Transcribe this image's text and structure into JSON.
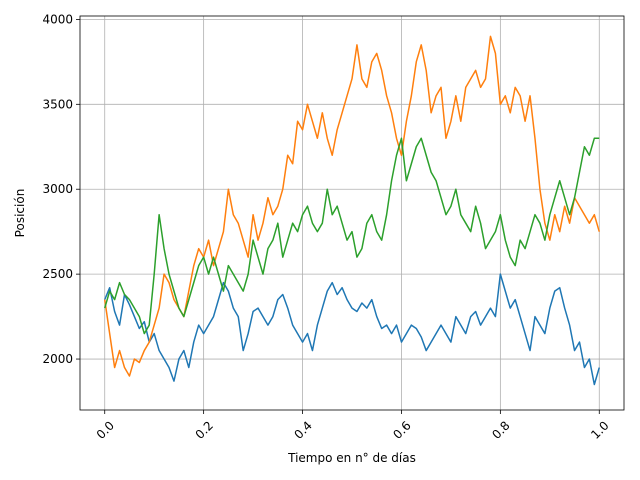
{
  "chart_data": {
    "type": "line",
    "title": "",
    "xlabel": "Tiempo en n° de días",
    "ylabel": "Posición",
    "xlim": [
      -0.05,
      1.05
    ],
    "ylim": [
      1700,
      4020
    ],
    "x_ticks": [
      0.0,
      0.2,
      0.4,
      0.6,
      0.8,
      1.0
    ],
    "x_tick_labels": [
      "0.0",
      "0.2",
      "0.4",
      "0.6",
      "0.8",
      "1.0"
    ],
    "y_ticks": [
      2000,
      2500,
      3000,
      3500,
      4000
    ],
    "y_tick_labels": [
      "2000",
      "2500",
      "3000",
      "3500",
      "4000"
    ],
    "grid": true,
    "legend": "none",
    "series": [
      {
        "color": "#1f77b4",
        "x": [
          0.0,
          0.01,
          0.02,
          0.03,
          0.04,
          0.05,
          0.06,
          0.07,
          0.08,
          0.09,
          0.1,
          0.11,
          0.12,
          0.13,
          0.14,
          0.15,
          0.16,
          0.17,
          0.18,
          0.19,
          0.2,
          0.21,
          0.22,
          0.23,
          0.24,
          0.25,
          0.26,
          0.27,
          0.28,
          0.29,
          0.3,
          0.31,
          0.32,
          0.33,
          0.34,
          0.35,
          0.36,
          0.37,
          0.38,
          0.39,
          0.4,
          0.41,
          0.42,
          0.43,
          0.44,
          0.45,
          0.46,
          0.47,
          0.48,
          0.49,
          0.5,
          0.51,
          0.52,
          0.53,
          0.54,
          0.55,
          0.56,
          0.57,
          0.58,
          0.59,
          0.6,
          0.61,
          0.62,
          0.63,
          0.64,
          0.65,
          0.66,
          0.67,
          0.68,
          0.69,
          0.7,
          0.71,
          0.72,
          0.73,
          0.74,
          0.75,
          0.76,
          0.77,
          0.78,
          0.79,
          0.8,
          0.81,
          0.82,
          0.83,
          0.84,
          0.85,
          0.86,
          0.87,
          0.88,
          0.89,
          0.9,
          0.91,
          0.92,
          0.93,
          0.94,
          0.95,
          0.96,
          0.97,
          0.98,
          0.99,
          1.0
        ],
        "y": [
          2350,
          2420,
          2280,
          2200,
          2380,
          2320,
          2250,
          2180,
          2220,
          2100,
          2150,
          2050,
          2000,
          1950,
          1870,
          2000,
          2050,
          1950,
          2100,
          2200,
          2150,
          2200,
          2250,
          2350,
          2450,
          2400,
          2300,
          2250,
          2050,
          2150,
          2280,
          2300,
          2250,
          2200,
          2250,
          2350,
          2380,
          2300,
          2200,
          2150,
          2100,
          2150,
          2050,
          2200,
          2300,
          2400,
          2450,
          2380,
          2420,
          2350,
          2300,
          2280,
          2330,
          2300,
          2350,
          2250,
          2180,
          2200,
          2150,
          2200,
          2100,
          2150,
          2200,
          2180,
          2130,
          2050,
          2100,
          2150,
          2200,
          2150,
          2100,
          2250,
          2200,
          2150,
          2250,
          2280,
          2200,
          2250,
          2300,
          2250,
          2500,
          2400,
          2300,
          2350,
          2250,
          2150,
          2050,
          2250,
          2200,
          2150,
          2300,
          2400,
          2420,
          2300,
          2200,
          2050,
          2100,
          1950,
          2000,
          1850,
          1950
        ]
      },
      {
        "color": "#ff7f0e",
        "x": [
          0.0,
          0.01,
          0.02,
          0.03,
          0.04,
          0.05,
          0.06,
          0.07,
          0.08,
          0.09,
          0.1,
          0.11,
          0.12,
          0.13,
          0.14,
          0.15,
          0.16,
          0.17,
          0.18,
          0.19,
          0.2,
          0.21,
          0.22,
          0.23,
          0.24,
          0.25,
          0.26,
          0.27,
          0.28,
          0.29,
          0.3,
          0.31,
          0.32,
          0.33,
          0.34,
          0.35,
          0.36,
          0.37,
          0.38,
          0.39,
          0.4,
          0.41,
          0.42,
          0.43,
          0.44,
          0.45,
          0.46,
          0.47,
          0.48,
          0.49,
          0.5,
          0.51,
          0.52,
          0.53,
          0.54,
          0.55,
          0.56,
          0.57,
          0.58,
          0.59,
          0.6,
          0.61,
          0.62,
          0.63,
          0.64,
          0.65,
          0.66,
          0.67,
          0.68,
          0.69,
          0.7,
          0.71,
          0.72,
          0.73,
          0.74,
          0.75,
          0.76,
          0.77,
          0.78,
          0.79,
          0.8,
          0.81,
          0.82,
          0.83,
          0.84,
          0.85,
          0.86,
          0.87,
          0.88,
          0.89,
          0.9,
          0.91,
          0.92,
          0.93,
          0.94,
          0.95,
          0.96,
          0.97,
          0.98,
          0.99,
          1.0
        ],
        "y": [
          2350,
          2150,
          1950,
          2050,
          1950,
          1900,
          2000,
          1980,
          2050,
          2100,
          2200,
          2300,
          2500,
          2450,
          2350,
          2300,
          2250,
          2400,
          2550,
          2650,
          2600,
          2700,
          2550,
          2650,
          2750,
          3000,
          2850,
          2800,
          2700,
          2600,
          2850,
          2700,
          2800,
          2950,
          2850,
          2900,
          3000,
          3200,
          3150,
          3400,
          3350,
          3500,
          3400,
          3300,
          3450,
          3300,
          3200,
          3350,
          3450,
          3550,
          3650,
          3850,
          3650,
          3600,
          3750,
          3800,
          3700,
          3550,
          3450,
          3300,
          3200,
          3400,
          3550,
          3750,
          3850,
          3700,
          3450,
          3550,
          3600,
          3300,
          3400,
          3550,
          3400,
          3600,
          3650,
          3700,
          3600,
          3650,
          3900,
          3800,
          3500,
          3550,
          3450,
          3600,
          3550,
          3400,
          3550,
          3300,
          3000,
          2800,
          2700,
          2850,
          2750,
          2900,
          2800,
          2950,
          2900,
          2850,
          2800,
          2850,
          2750
        ]
      },
      {
        "color": "#2ca02c",
        "x": [
          0.0,
          0.01,
          0.02,
          0.03,
          0.04,
          0.05,
          0.06,
          0.07,
          0.08,
          0.09,
          0.1,
          0.11,
          0.12,
          0.13,
          0.14,
          0.15,
          0.16,
          0.17,
          0.18,
          0.19,
          0.2,
          0.21,
          0.22,
          0.23,
          0.24,
          0.25,
          0.26,
          0.27,
          0.28,
          0.29,
          0.3,
          0.31,
          0.32,
          0.33,
          0.34,
          0.35,
          0.36,
          0.37,
          0.38,
          0.39,
          0.4,
          0.41,
          0.42,
          0.43,
          0.44,
          0.45,
          0.46,
          0.47,
          0.48,
          0.49,
          0.5,
          0.51,
          0.52,
          0.53,
          0.54,
          0.55,
          0.56,
          0.57,
          0.58,
          0.59,
          0.6,
          0.61,
          0.62,
          0.63,
          0.64,
          0.65,
          0.66,
          0.67,
          0.68,
          0.69,
          0.7,
          0.71,
          0.72,
          0.73,
          0.74,
          0.75,
          0.76,
          0.77,
          0.78,
          0.79,
          0.8,
          0.81,
          0.82,
          0.83,
          0.84,
          0.85,
          0.86,
          0.87,
          0.88,
          0.89,
          0.9,
          0.91,
          0.92,
          0.93,
          0.94,
          0.95,
          0.96,
          0.97,
          0.98,
          0.99,
          1.0
        ],
        "y": [
          2300,
          2400,
          2350,
          2450,
          2380,
          2350,
          2300,
          2250,
          2150,
          2200,
          2500,
          2850,
          2650,
          2500,
          2400,
          2300,
          2250,
          2350,
          2450,
          2550,
          2600,
          2500,
          2600,
          2500,
          2400,
          2550,
          2500,
          2450,
          2400,
          2500,
          2700,
          2600,
          2500,
          2650,
          2700,
          2800,
          2600,
          2700,
          2800,
          2750,
          2850,
          2900,
          2800,
          2750,
          2800,
          3000,
          2850,
          2900,
          2800,
          2700,
          2750,
          2600,
          2650,
          2800,
          2850,
          2750,
          2700,
          2850,
          3050,
          3200,
          3300,
          3050,
          3150,
          3250,
          3300,
          3200,
          3100,
          3050,
          2950,
          2850,
          2900,
          3000,
          2850,
          2800,
          2750,
          2900,
          2800,
          2650,
          2700,
          2750,
          2850,
          2700,
          2600,
          2550,
          2700,
          2650,
          2750,
          2850,
          2800,
          2700,
          2850,
          2950,
          3050,
          2950,
          2850,
          2950,
          3100,
          3250,
          3200,
          3300,
          3300
        ]
      }
    ]
  }
}
